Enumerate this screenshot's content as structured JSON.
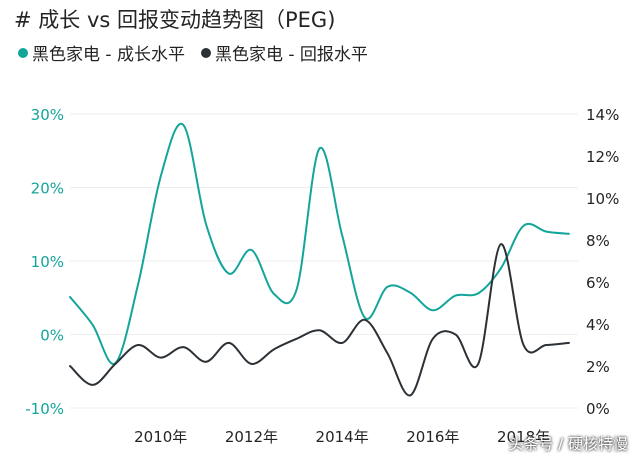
{
  "title": "# 成长 vs 回报变动趋势图（PEG)",
  "legend": [
    {
      "label": "黑色家电 - 成长水平",
      "color": "#14a59a"
    },
    {
      "label": "黑色家电 - 回报水平",
      "color": "#2b3136"
    }
  ],
  "watermark": "头条号 / 硬核特慢",
  "chart_data": {
    "type": "line",
    "x_ticks": [
      "2010年",
      "2012年",
      "2014年",
      "2016年",
      "2018年"
    ],
    "x_tick_values": [
      2010,
      2012,
      2014,
      2016,
      2018
    ],
    "xlim": [
      2008.0,
      2019.2
    ],
    "y_left": {
      "ticks": [
        "-10%",
        "0%",
        "10%",
        "20%",
        "30%"
      ],
      "tick_values": [
        -10,
        0,
        10,
        20,
        30
      ],
      "ylim": [
        -10,
        30
      ],
      "color": "#14a59a"
    },
    "y_right": {
      "ticks": [
        "0%",
        "2%",
        "4%",
        "6%",
        "8%",
        "10%",
        "12%",
        "14%"
      ],
      "tick_values": [
        0,
        2,
        4,
        6,
        8,
        10,
        12,
        14
      ],
      "ylim": [
        0,
        14
      ],
      "color": "#252423"
    },
    "grid": true,
    "series": [
      {
        "name": "黑色家电 - 成长水平",
        "axis": "left",
        "color": "#14a59a",
        "x": [
          2008.0,
          2008.5,
          2009.0,
          2009.5,
          2010.0,
          2010.5,
          2011.0,
          2011.5,
          2012.0,
          2012.5,
          2013.0,
          2013.5,
          2014.0,
          2014.5,
          2015.0,
          2015.5,
          2016.0,
          2016.5,
          2017.0,
          2017.5,
          2018.0,
          2018.5,
          2019.0
        ],
        "values": [
          5.1,
          1.3,
          -3.9,
          6.8,
          21.5,
          28.5,
          15.0,
          8.3,
          11.5,
          5.5,
          6.2,
          25.3,
          13.5,
          2.3,
          6.5,
          5.7,
          3.3,
          5.3,
          5.6,
          9.0,
          14.8,
          14.0,
          13.7
        ]
      },
      {
        "name": "黑色家电 - 回报水平",
        "axis": "right",
        "color": "#2b3136",
        "x": [
          2008.0,
          2008.5,
          2009.0,
          2009.5,
          2010.0,
          2010.5,
          2011.0,
          2011.5,
          2012.0,
          2012.5,
          2013.0,
          2013.5,
          2014.0,
          2014.5,
          2015.0,
          2015.5,
          2016.0,
          2016.5,
          2017.0,
          2017.5,
          2018.0,
          2018.5,
          2019.0
        ],
        "values": [
          2.0,
          1.1,
          2.1,
          3.0,
          2.4,
          2.9,
          2.2,
          3.1,
          2.1,
          2.8,
          3.3,
          3.7,
          3.1,
          4.2,
          2.6,
          0.6,
          3.3,
          3.5,
          2.1,
          7.8,
          3.0,
          3.0,
          3.1
        ]
      }
    ]
  }
}
